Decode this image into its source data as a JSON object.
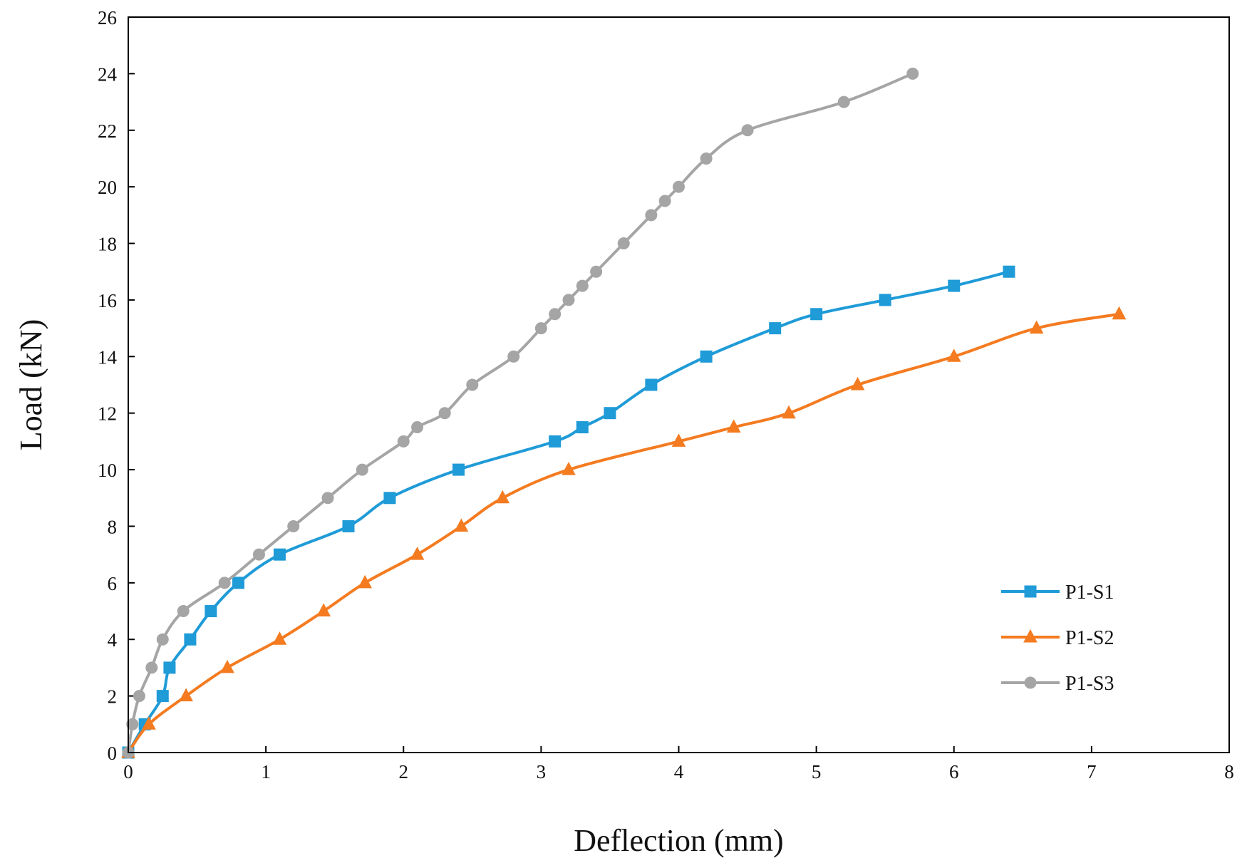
{
  "chart_data": {
    "type": "line",
    "title": "",
    "xlabel": "Deflection (mm)",
    "ylabel": "Load (kN)",
    "xlim": [
      0,
      8
    ],
    "ylim": [
      0,
      26
    ],
    "xticks": [
      0,
      1,
      2,
      3,
      4,
      5,
      6,
      7,
      8
    ],
    "yticks": [
      0,
      2,
      4,
      6,
      8,
      10,
      12,
      14,
      16,
      18,
      20,
      22,
      24,
      26
    ],
    "grid": false,
    "legend_position": "bottom-right",
    "series": [
      {
        "name": "P1-S1",
        "color": "#1f9bd7",
        "marker": "square",
        "x": [
          0,
          0.12,
          0.25,
          0.3,
          0.45,
          0.6,
          0.8,
          1.1,
          1.6,
          1.9,
          2.4,
          3.1,
          3.3,
          3.5,
          3.8,
          4.2,
          4.7,
          5.0,
          5.5,
          6.0,
          6.4
        ],
        "y": [
          0,
          1,
          2,
          3,
          4,
          5,
          6,
          7,
          8,
          9,
          10,
          11,
          11.5,
          12,
          13,
          14,
          15,
          15.5,
          16,
          16.5,
          17
        ]
      },
      {
        "name": "P1-S2",
        "color": "#f47b20",
        "marker": "triangle",
        "x": [
          0,
          0.15,
          0.42,
          0.72,
          1.1,
          1.42,
          1.72,
          2.1,
          2.42,
          2.72,
          3.2,
          4.0,
          4.4,
          4.8,
          5.3,
          6.0,
          6.6,
          7.2
        ],
        "y": [
          0,
          1,
          2,
          3,
          4,
          5,
          6,
          7,
          8,
          9,
          10,
          11,
          11.5,
          12,
          13,
          14,
          15,
          15.5
        ]
      },
      {
        "name": "P1-S3",
        "color": "#a5a5a5",
        "marker": "circle",
        "x": [
          0,
          0.03,
          0.08,
          0.17,
          0.25,
          0.4,
          0.7,
          0.95,
          1.2,
          1.45,
          1.7,
          2.0,
          2.1,
          2.3,
          2.5,
          2.8,
          3.0,
          3.1,
          3.2,
          3.3,
          3.4,
          3.6,
          3.8,
          3.9,
          4.0,
          4.2,
          4.5,
          5.2,
          5.7
        ],
        "y": [
          0,
          1,
          2,
          3,
          4,
          5,
          6,
          7,
          8,
          9,
          10,
          11,
          11.5,
          12,
          13,
          14,
          15,
          15.5,
          16,
          16.5,
          17,
          18,
          19,
          19.5,
          20,
          21,
          22,
          23,
          24
        ]
      }
    ]
  }
}
